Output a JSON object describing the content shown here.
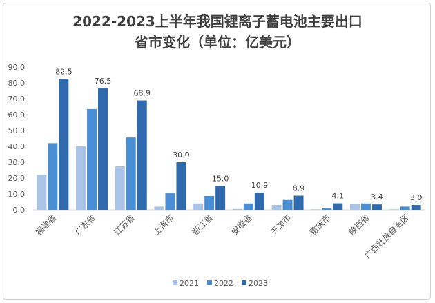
{
  "chart_data": {
    "type": "bar",
    "title_line1": "2022-2023上半年我国锂离子蓄电池主要出口",
    "title_line2": "省市变化（单位：亿美元）",
    "categories": [
      "福建省",
      "广东省",
      "江苏省",
      "上海市",
      "浙江省",
      "安徽省",
      "天津市",
      "重庆市",
      "陕西省",
      "广西壮族自治区"
    ],
    "series": [
      {
        "name": "2021",
        "color": "#a9c4e6",
        "values": [
          22,
          40,
          27.4,
          2,
          4,
          0.5,
          3,
          0.3,
          3.5,
          0.3
        ]
      },
      {
        "name": "2022",
        "color": "#4a8fd6",
        "values": [
          42,
          63.5,
          45.6,
          10.4,
          8.7,
          4,
          6.2,
          1,
          4,
          2
        ]
      },
      {
        "name": "2023",
        "color": "#2e6aad",
        "values": [
          82.5,
          76.5,
          68.9,
          30.0,
          15.0,
          10.9,
          8.9,
          4.1,
          3.4,
          3.0
        ]
      }
    ],
    "data_labels_2023": [
      "82.5",
      "76.5",
      "68.9",
      "30.0",
      "15.0",
      "10.9",
      "8.9",
      "4.1",
      "3.4",
      "3.0"
    ],
    "yticks": [
      "0.0",
      "10.0",
      "20.0",
      "30.0",
      "40.0",
      "50.0",
      "60.0",
      "70.0",
      "80.0",
      "90.0"
    ],
    "ylim": [
      0,
      90
    ],
    "legend_position": "bottom",
    "grid": false
  }
}
